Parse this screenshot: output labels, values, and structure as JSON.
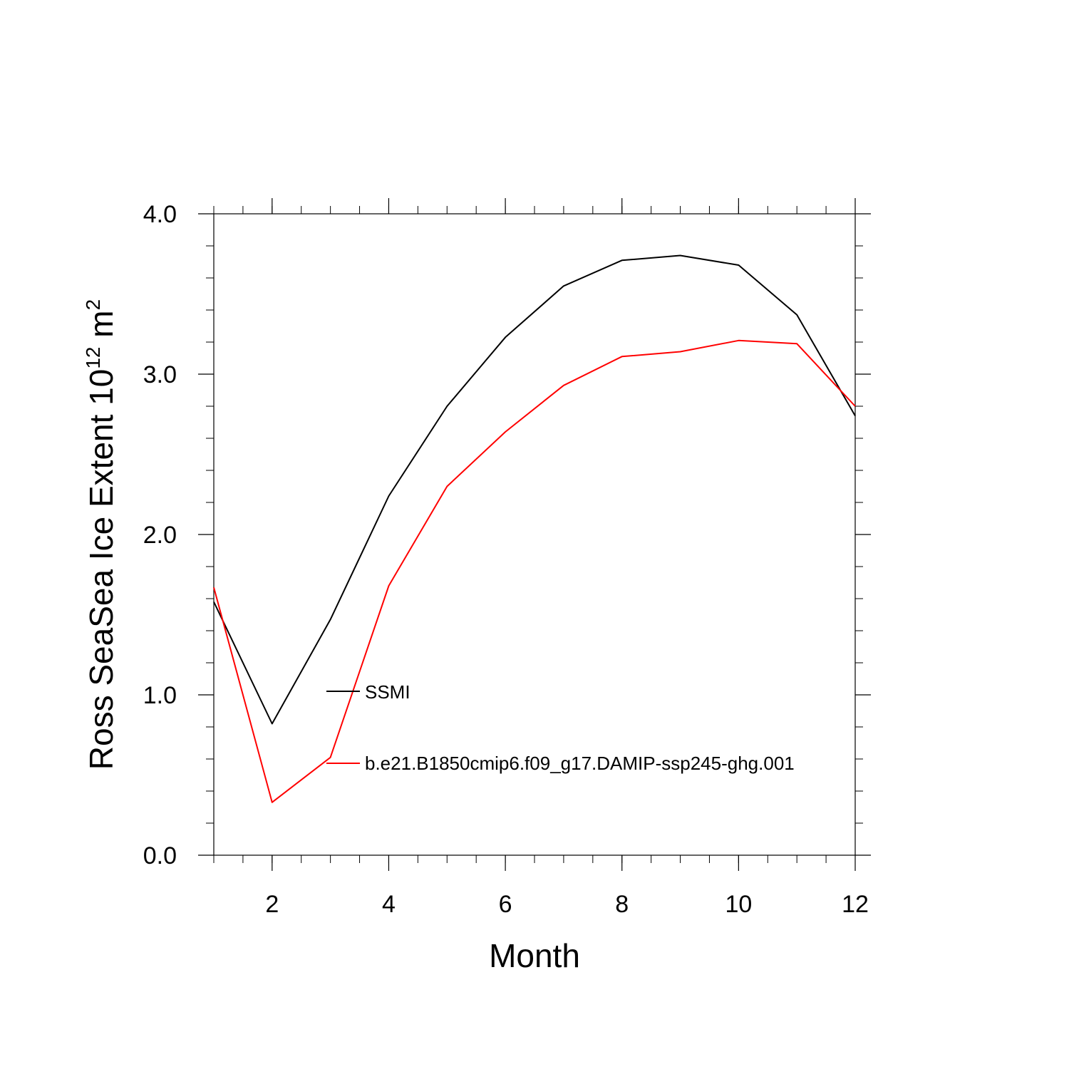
{
  "chart_data": {
    "type": "line",
    "xlabel": "Month",
    "ylabel_main": "Ross SeaSea Ice Extent 10",
    "ylabel_sup1": "12",
    "ylabel_unit": " m",
    "ylabel_sup2": "2",
    "xlim": [
      1,
      12
    ],
    "ylim": [
      0,
      4
    ],
    "x_ticks": [
      2,
      4,
      6,
      8,
      10,
      12
    ],
    "x_tick_labels": [
      "2",
      "4",
      "6",
      "8",
      "10",
      "12"
    ],
    "y_ticks": [
      0,
      1,
      2,
      3,
      4
    ],
    "y_tick_labels": [
      "0.0",
      "1.0",
      "2.0",
      "3.0",
      "4.0"
    ],
    "grid": false,
    "legend_position": "center",
    "x": [
      1,
      2,
      3,
      4,
      5,
      6,
      7,
      8,
      9,
      10,
      11,
      12
    ],
    "series": [
      {
        "name": "SSMI",
        "color": "#000000",
        "values": [
          1.58,
          0.82,
          1.47,
          2.24,
          2.8,
          3.23,
          3.55,
          3.71,
          3.74,
          3.68,
          3.37,
          2.74
        ]
      },
      {
        "name": "b.e21.B1850cmip6.f09_g17.DAMIP-ssp245-ghg.001",
        "color": "#ff0000",
        "values": [
          1.67,
          0.33,
          0.61,
          1.68,
          2.3,
          2.64,
          2.93,
          3.11,
          3.14,
          3.21,
          3.19,
          2.8
        ]
      }
    ]
  }
}
